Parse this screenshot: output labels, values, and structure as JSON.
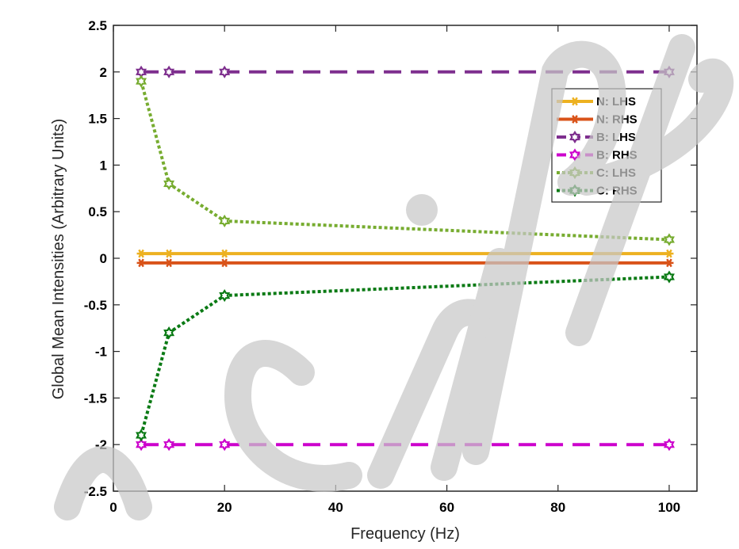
{
  "chart_data": {
    "type": "line",
    "title": "",
    "xlabel": "Frequency (Hz)",
    "ylabel": "Global Mean Intensities (Arbitrary Units)",
    "xlim": [
      0,
      105
    ],
    "ylim": [
      -2.5,
      2.5
    ],
    "xticks": [
      0,
      20,
      40,
      60,
      80,
      100
    ],
    "yticks": [
      2.5,
      2,
      1.5,
      1,
      0.5,
      0,
      -0.5,
      -1,
      -1.5,
      -2,
      -2.5
    ],
    "grid": false,
    "legend_position": "top-right",
    "x": [
      5,
      10,
      20,
      100
    ],
    "series": [
      {
        "name": "N: LHS",
        "values": [
          0.05,
          0.05,
          0.05,
          0.05
        ],
        "color": "#EDB120",
        "style": "solid",
        "marker": "asterisk"
      },
      {
        "name": "N: RHS",
        "values": [
          -0.05,
          -0.05,
          -0.05,
          -0.05
        ],
        "color": "#D95319",
        "style": "solid",
        "marker": "asterisk"
      },
      {
        "name": "B: LHS",
        "values": [
          2,
          2,
          2,
          2
        ],
        "color": "#7E2F8E",
        "style": "dashed",
        "marker": "hexagram"
      },
      {
        "name": "B: RHS",
        "values": [
          -2,
          -2,
          -2,
          -2
        ],
        "color": "#CC00CC",
        "style": "dashed",
        "marker": "hexagram"
      },
      {
        "name": "C: LHS",
        "values": [
          1.9,
          0.8,
          0.4,
          0.2
        ],
        "color": "#77AC30",
        "style": "dotted",
        "marker": "hexagram"
      },
      {
        "name": "C: RHS",
        "values": [
          -1.9,
          -0.8,
          -0.4,
          -0.2
        ],
        "color": "#0A7A14",
        "style": "dotted",
        "marker": "hexagram"
      }
    ],
    "watermark": "Manuscript"
  }
}
